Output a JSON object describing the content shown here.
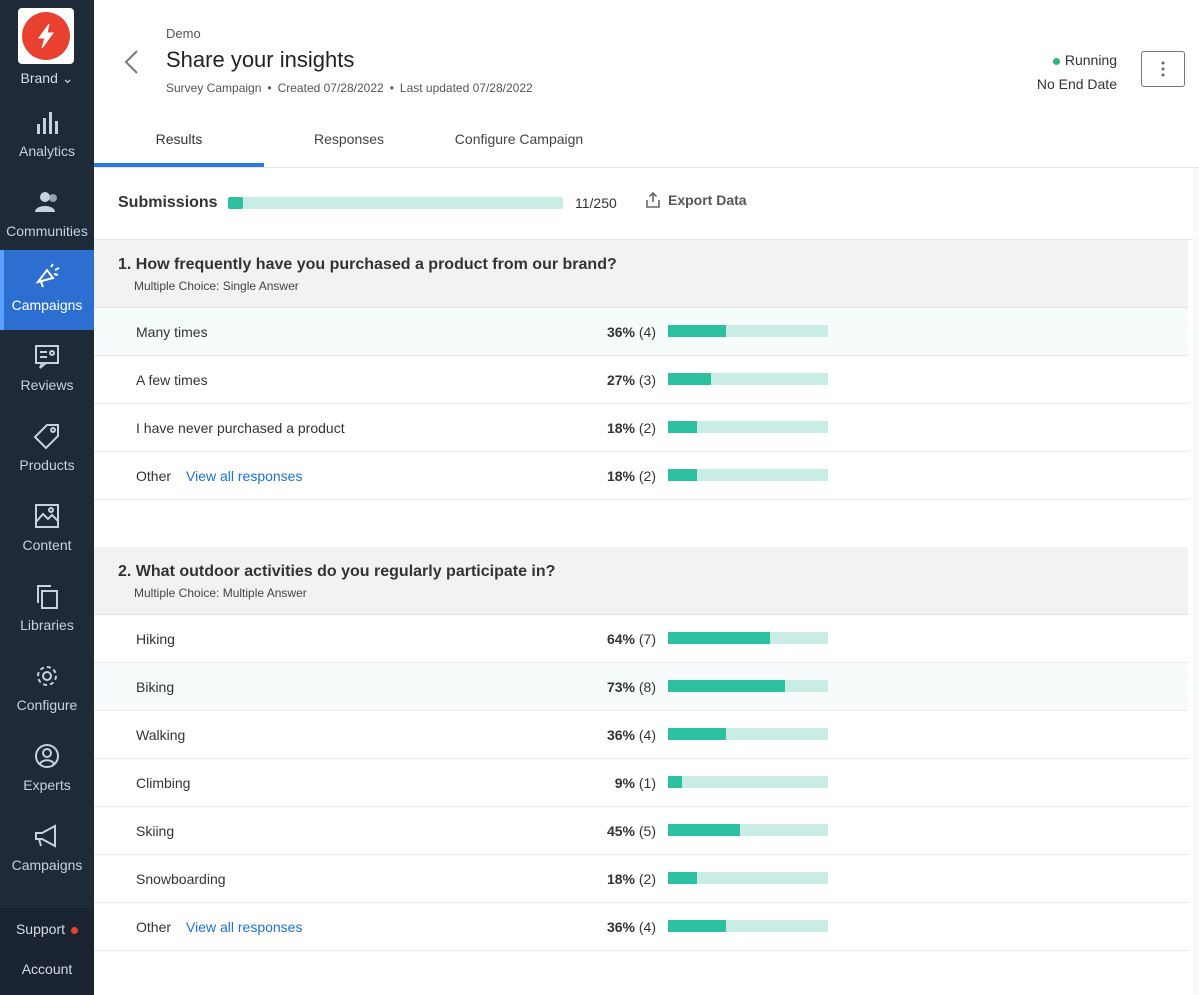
{
  "sidebar": {
    "brand": "Brand",
    "items": [
      {
        "label": "Analytics",
        "icon": "bar-chart-icon"
      },
      {
        "label": "Communities",
        "icon": "people-icon"
      },
      {
        "label": "Campaigns",
        "icon": "megaphone-party-icon",
        "active": true
      },
      {
        "label": "Reviews",
        "icon": "review-card-icon"
      },
      {
        "label": "Products",
        "icon": "tag-icon"
      },
      {
        "label": "Content",
        "icon": "image-icon"
      },
      {
        "label": "Libraries",
        "icon": "copy-icon"
      },
      {
        "label": "Configure",
        "icon": "gear-icon"
      },
      {
        "label": "Experts",
        "icon": "user-circle-icon"
      },
      {
        "label": "Campaigns",
        "icon": "megaphone-icon"
      }
    ],
    "support": "Support",
    "account": "Account"
  },
  "header": {
    "crumb": "Demo",
    "title": "Share your insights",
    "meta": {
      "type": "Survey Campaign",
      "created": "Created 07/28/2022",
      "updated": "Last updated 07/28/2022"
    },
    "status": "Running",
    "end": "No End Date",
    "tabs": [
      "Results",
      "Responses",
      "Configure Campaign"
    ]
  },
  "submissions": {
    "label": "Submissions",
    "count": "11/250",
    "current": 11,
    "max": 250,
    "export": "Export Data"
  },
  "questions": [
    {
      "title": "1. How frequently have you purchased a product from our brand?",
      "type": "Multiple Choice: Single Answer",
      "options": [
        {
          "label": "Many times",
          "pct": "36%",
          "n": "(4)",
          "value": 36
        },
        {
          "label": "A few times",
          "pct": "27%",
          "n": "(3)",
          "value": 27
        },
        {
          "label": "I have never purchased a product",
          "pct": "18%",
          "n": "(2)",
          "value": 18
        },
        {
          "label": "Other",
          "link": "View all responses",
          "pct": "18%",
          "n": "(2)",
          "value": 18
        }
      ]
    },
    {
      "title": "2. What outdoor activities do you regularly participate in?",
      "type": "Multiple Choice: Multiple Answer",
      "options": [
        {
          "label": "Hiking",
          "pct": "64%",
          "n": "(7)",
          "value": 64
        },
        {
          "label": "Biking",
          "pct": "73%",
          "n": "(8)",
          "value": 73
        },
        {
          "label": "Walking",
          "pct": "36%",
          "n": "(4)",
          "value": 36
        },
        {
          "label": "Climbing",
          "pct": "9%",
          "n": "(1)",
          "value": 9
        },
        {
          "label": "Skiing",
          "pct": "45%",
          "n": "(5)",
          "value": 45
        },
        {
          "label": "Snowboarding",
          "pct": "18%",
          "n": "(2)",
          "value": 18
        },
        {
          "label": "Other",
          "link": "View all responses",
          "pct": "36%",
          "n": "(4)",
          "value": 36
        }
      ]
    }
  ],
  "colors": {
    "accent": "#2cbfa0",
    "track": "#c9ece4",
    "link": "#1a73d9",
    "sidebar": "#1e2a38",
    "active": "#2c6fd1",
    "status_dot": "#34b27b"
  }
}
